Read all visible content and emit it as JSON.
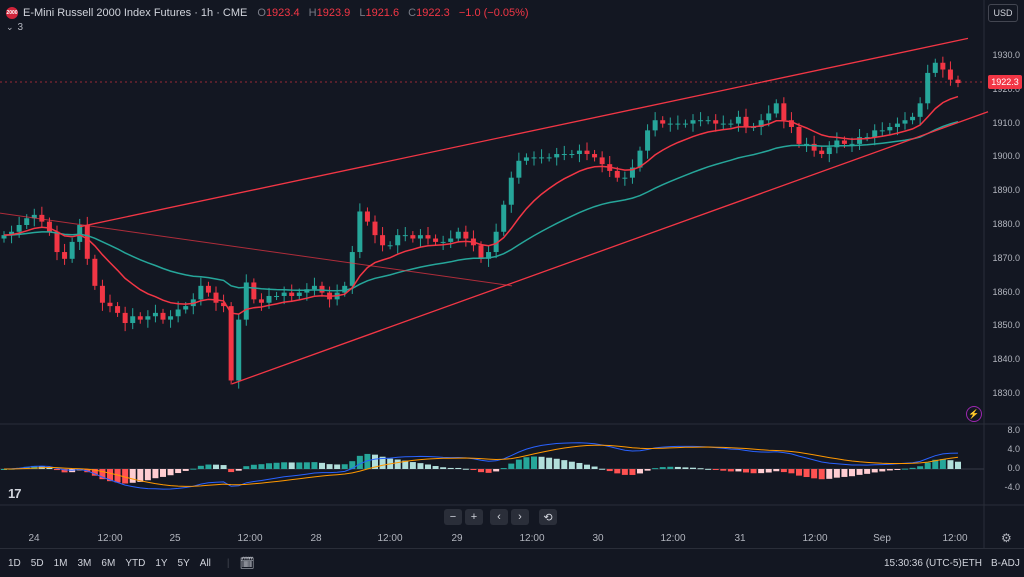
{
  "header": {
    "symbol_badge": "2000",
    "title": "E-Mini Russell 2000 Index Futures · 1h · CME",
    "ohlc": [
      {
        "label": "O",
        "value": "1923.4"
      },
      {
        "label": "H",
        "value": "1923.9"
      },
      {
        "label": "L",
        "value": "1921.6"
      },
      {
        "label": "C",
        "value": "1922.3"
      }
    ],
    "change": "−1.0 (−0.05%)",
    "indicators_count": "3",
    "currency": "USD"
  },
  "price_axis": {
    "labels": [
      "1930.0",
      "1920.0",
      "1910.0",
      "1900.0",
      "1890.0",
      "1880.0",
      "1870.0",
      "1860.0",
      "1850.0",
      "1840.0",
      "1830.0"
    ],
    "current_price": "1922.3"
  },
  "oscillator_axis": {
    "labels": [
      "8.0",
      "4.0",
      "0.0",
      "-4.0"
    ]
  },
  "time_axis": {
    "labels": [
      "24",
      "12:00",
      "25",
      "12:00",
      "28",
      "12:00",
      "29",
      "12:00",
      "30",
      "12:00",
      "31",
      "12:00",
      "Sep",
      "12:00"
    ]
  },
  "timeframes": [
    "1D",
    "5D",
    "1M",
    "3M",
    "6M",
    "YTD",
    "1Y",
    "5Y",
    "All"
  ],
  "status": {
    "clock": "15:30:36 (UTC-5)",
    "session": "ETH",
    "adjustment": "B-ADJ"
  },
  "colors": {
    "up": "#26a69a",
    "down": "#f23645",
    "ema_fast": "#f23645",
    "ema_slow": "#26a69a",
    "macd": "#2962ff",
    "signal": "#ff9800",
    "trendline": "#f23645"
  },
  "chart_data": {
    "type": "candlestick",
    "ylim": [
      1826,
      1936
    ],
    "oscillator_ylim": [
      -6,
      9
    ],
    "close": [
      1877,
      1878,
      1880,
      1882,
      1883,
      1881,
      1878,
      1872,
      1870,
      1875,
      1880,
      1870,
      1862,
      1857,
      1856,
      1854,
      1851,
      1853,
      1852,
      1853,
      1854,
      1852,
      1853,
      1855,
      1856,
      1858,
      1862,
      1860,
      1857,
      1856,
      1834,
      1852,
      1863,
      1858,
      1857,
      1859,
      1859,
      1860,
      1859,
      1860,
      1861,
      1862,
      1860,
      1858,
      1860,
      1862,
      1872,
      1884,
      1881,
      1877,
      1874,
      1874,
      1877,
      1877,
      1876,
      1877,
      1876,
      1875,
      1875,
      1876,
      1878,
      1876,
      1874,
      1870,
      1872,
      1878,
      1886,
      1894,
      1899,
      1900,
      1900,
      1900,
      1900,
      1901,
      1901,
      1901,
      1902,
      1901,
      1900,
      1898,
      1896,
      1894,
      1894,
      1897,
      1902,
      1908,
      1911,
      1910,
      1910,
      1910,
      1910,
      1911,
      1911,
      1911,
      1910,
      1910,
      1910,
      1912,
      1909,
      1909,
      1911,
      1913,
      1916,
      1911,
      1909,
      1904,
      1904,
      1902,
      1901,
      1903,
      1905,
      1904,
      1904,
      1906,
      1906,
      1908,
      1908,
      1909,
      1910,
      1911,
      1912,
      1916,
      1925,
      1928,
      1926,
      1923,
      1922
    ],
    "ema_fast_last": 1917,
    "ema_slow_last": 1910,
    "trendlines": [
      {
        "from": "upper",
        "x": [
          80,
          968
        ],
        "y": [
          1879.5,
          1935.2
        ]
      },
      {
        "from": "lower",
        "x": [
          232,
          988
        ],
        "y": [
          1833,
          1913.5
        ]
      },
      {
        "from": "diag",
        "x": [
          0,
          512
        ],
        "y": [
          1883.5,
          1862
        ]
      }
    ]
  }
}
